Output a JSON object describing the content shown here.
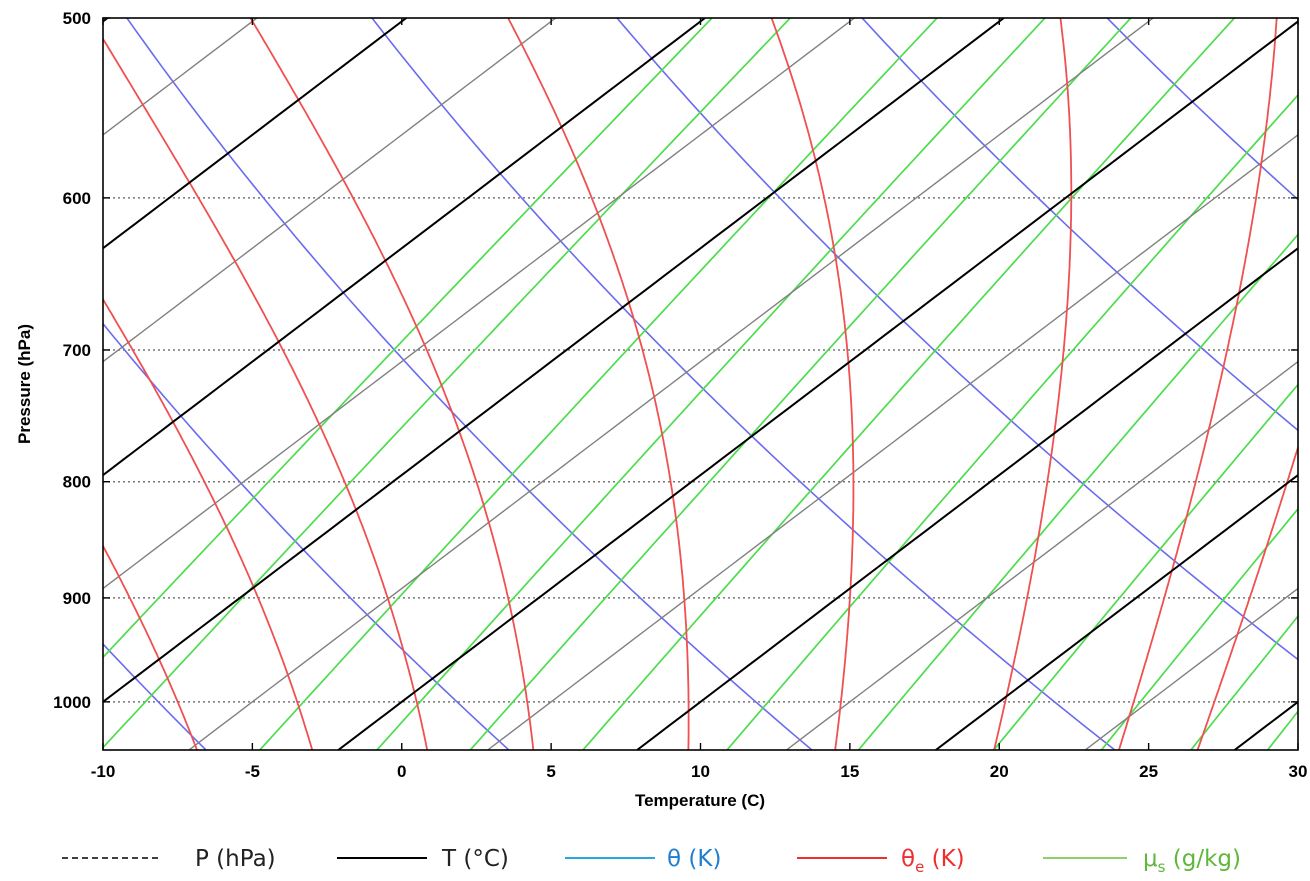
{
  "chart_data": {
    "type": "line",
    "title": "",
    "xlabel": "Temperature (C)",
    "ylabel": "Pressure (hPa)",
    "xlim": [
      -10,
      30
    ],
    "ylim": [
      1050,
      500
    ],
    "y_scale": "log",
    "x_ticks": [
      -10,
      -5,
      0,
      5,
      10,
      15,
      20,
      25,
      30
    ],
    "x_tick_labels": [
      "-10",
      "-5",
      "0",
      "5",
      "10",
      "15",
      "20",
      "25",
      "30"
    ],
    "y_ticks": [
      500,
      600,
      700,
      800,
      900,
      1000
    ],
    "y_tick_labels": [
      "500",
      "600",
      "700",
      "800",
      "900",
      "1000"
    ],
    "grid": {
      "horizontal_dotted": [
        600,
        700,
        800,
        900,
        1000
      ]
    },
    "skew_degrees_per_log_unit": 43.5,
    "series": [
      {
        "name": "P (hPa)",
        "color": "#333333",
        "style": "dashed",
        "kind": "isobar",
        "values": [
          600,
          700,
          800,
          900,
          1000
        ]
      },
      {
        "name": "T (°C)",
        "color": "#000000",
        "style": "solid",
        "kind": "isotherm",
        "values": [
          -40,
          -30,
          -20,
          -10,
          0,
          10,
          20,
          30
        ]
      },
      {
        "name": "",
        "color": "#808080",
        "style": "solid",
        "kind": "isotherm_minor",
        "values": [
          -45,
          -35,
          -25,
          -15,
          -5,
          5,
          15,
          25,
          35
        ]
      },
      {
        "name": "θ (K)",
        "color": "#6b6bf0",
        "style": "solid",
        "kind": "dry_adiabat",
        "values": [
          265,
          275,
          285,
          295,
          305,
          315,
          325
        ]
      },
      {
        "name": "θe (K)",
        "color": "#f05050",
        "style": "solid",
        "kind": "moist_adiabat",
        "values": [
          -12.7,
          -7.5,
          -3.5,
          0.5,
          4.2,
          9.6,
          14.7,
          20.2,
          24.5,
          27.2
        ]
      },
      {
        "name": "μs (g/kg)",
        "color": "#4ddc4d",
        "style": "solid",
        "kind": "mixing_ratio",
        "values": [
          1.6,
          2,
          3,
          4,
          5,
          6.5,
          9,
          12,
          16,
          20,
          24,
          28
        ]
      }
    ]
  },
  "legend": {
    "items": [
      {
        "label": "P (hPa)",
        "color": "#000000",
        "text_color": "#222222",
        "style": "dashed"
      },
      {
        "label": "T (°C)",
        "color": "#000000",
        "text_color": "#222222",
        "style": "solid"
      },
      {
        "label": "θ (K)",
        "color": "#29a8e0",
        "text_color": "#1e7fd0",
        "style": "solid"
      },
      {
        "label_main": "θ",
        "label_sub": "e",
        "label_rest": " (K)",
        "color": "#ee2f2f",
        "text_color": "#ee2f2f",
        "style": "solid"
      },
      {
        "label_main": "μ",
        "label_sub": "s",
        "label_rest": " (g/kg)",
        "color": "#8ed06b",
        "text_color": "#5fb83a",
        "style": "solid"
      }
    ]
  }
}
